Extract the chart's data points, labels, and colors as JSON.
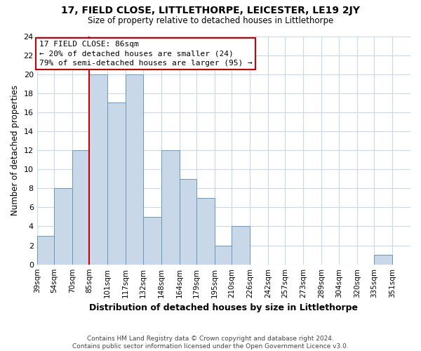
{
  "title": "17, FIELD CLOSE, LITTLETHORPE, LEICESTER, LE19 2JY",
  "subtitle": "Size of property relative to detached houses in Littlethorpe",
  "xlabel_actual": "Distribution of detached houses by size in Littlethorpe",
  "ylabel": "Number of detached properties",
  "footer_line1": "Contains HM Land Registry data © Crown copyright and database right 2024.",
  "footer_line2": "Contains public sector information licensed under the Open Government Licence v3.0.",
  "bin_labels": [
    "39sqm",
    "54sqm",
    "70sqm",
    "85sqm",
    "101sqm",
    "117sqm",
    "132sqm",
    "148sqm",
    "164sqm",
    "179sqm",
    "195sqm",
    "210sqm",
    "226sqm",
    "242sqm",
    "257sqm",
    "273sqm",
    "289sqm",
    "304sqm",
    "320sqm",
    "335sqm",
    "351sqm"
  ],
  "bin_edges": [
    39,
    54,
    70,
    85,
    101,
    117,
    132,
    148,
    164,
    179,
    195,
    210,
    226,
    242,
    257,
    273,
    289,
    304,
    320,
    335,
    351
  ],
  "bar_heights": [
    3,
    8,
    12,
    20,
    17,
    20,
    5,
    12,
    9,
    7,
    2,
    4,
    0,
    0,
    0,
    0,
    0,
    0,
    0,
    1
  ],
  "bar_color": "#c8d8e8",
  "bar_edge_color": "#6699bb",
  "reference_line_x": 85,
  "reference_line_color": "#cc0000",
  "annotation_title": "17 FIELD CLOSE: 86sqm",
  "annotation_line1": "← 20% of detached houses are smaller (24)",
  "annotation_line2": "79% of semi-detached houses are larger (95) →",
  "annotation_box_color": "#ffffff",
  "annotation_box_edge": "#cc0000",
  "ylim": [
    0,
    24
  ],
  "yticks": [
    0,
    2,
    4,
    6,
    8,
    10,
    12,
    14,
    16,
    18,
    20,
    22,
    24
  ]
}
